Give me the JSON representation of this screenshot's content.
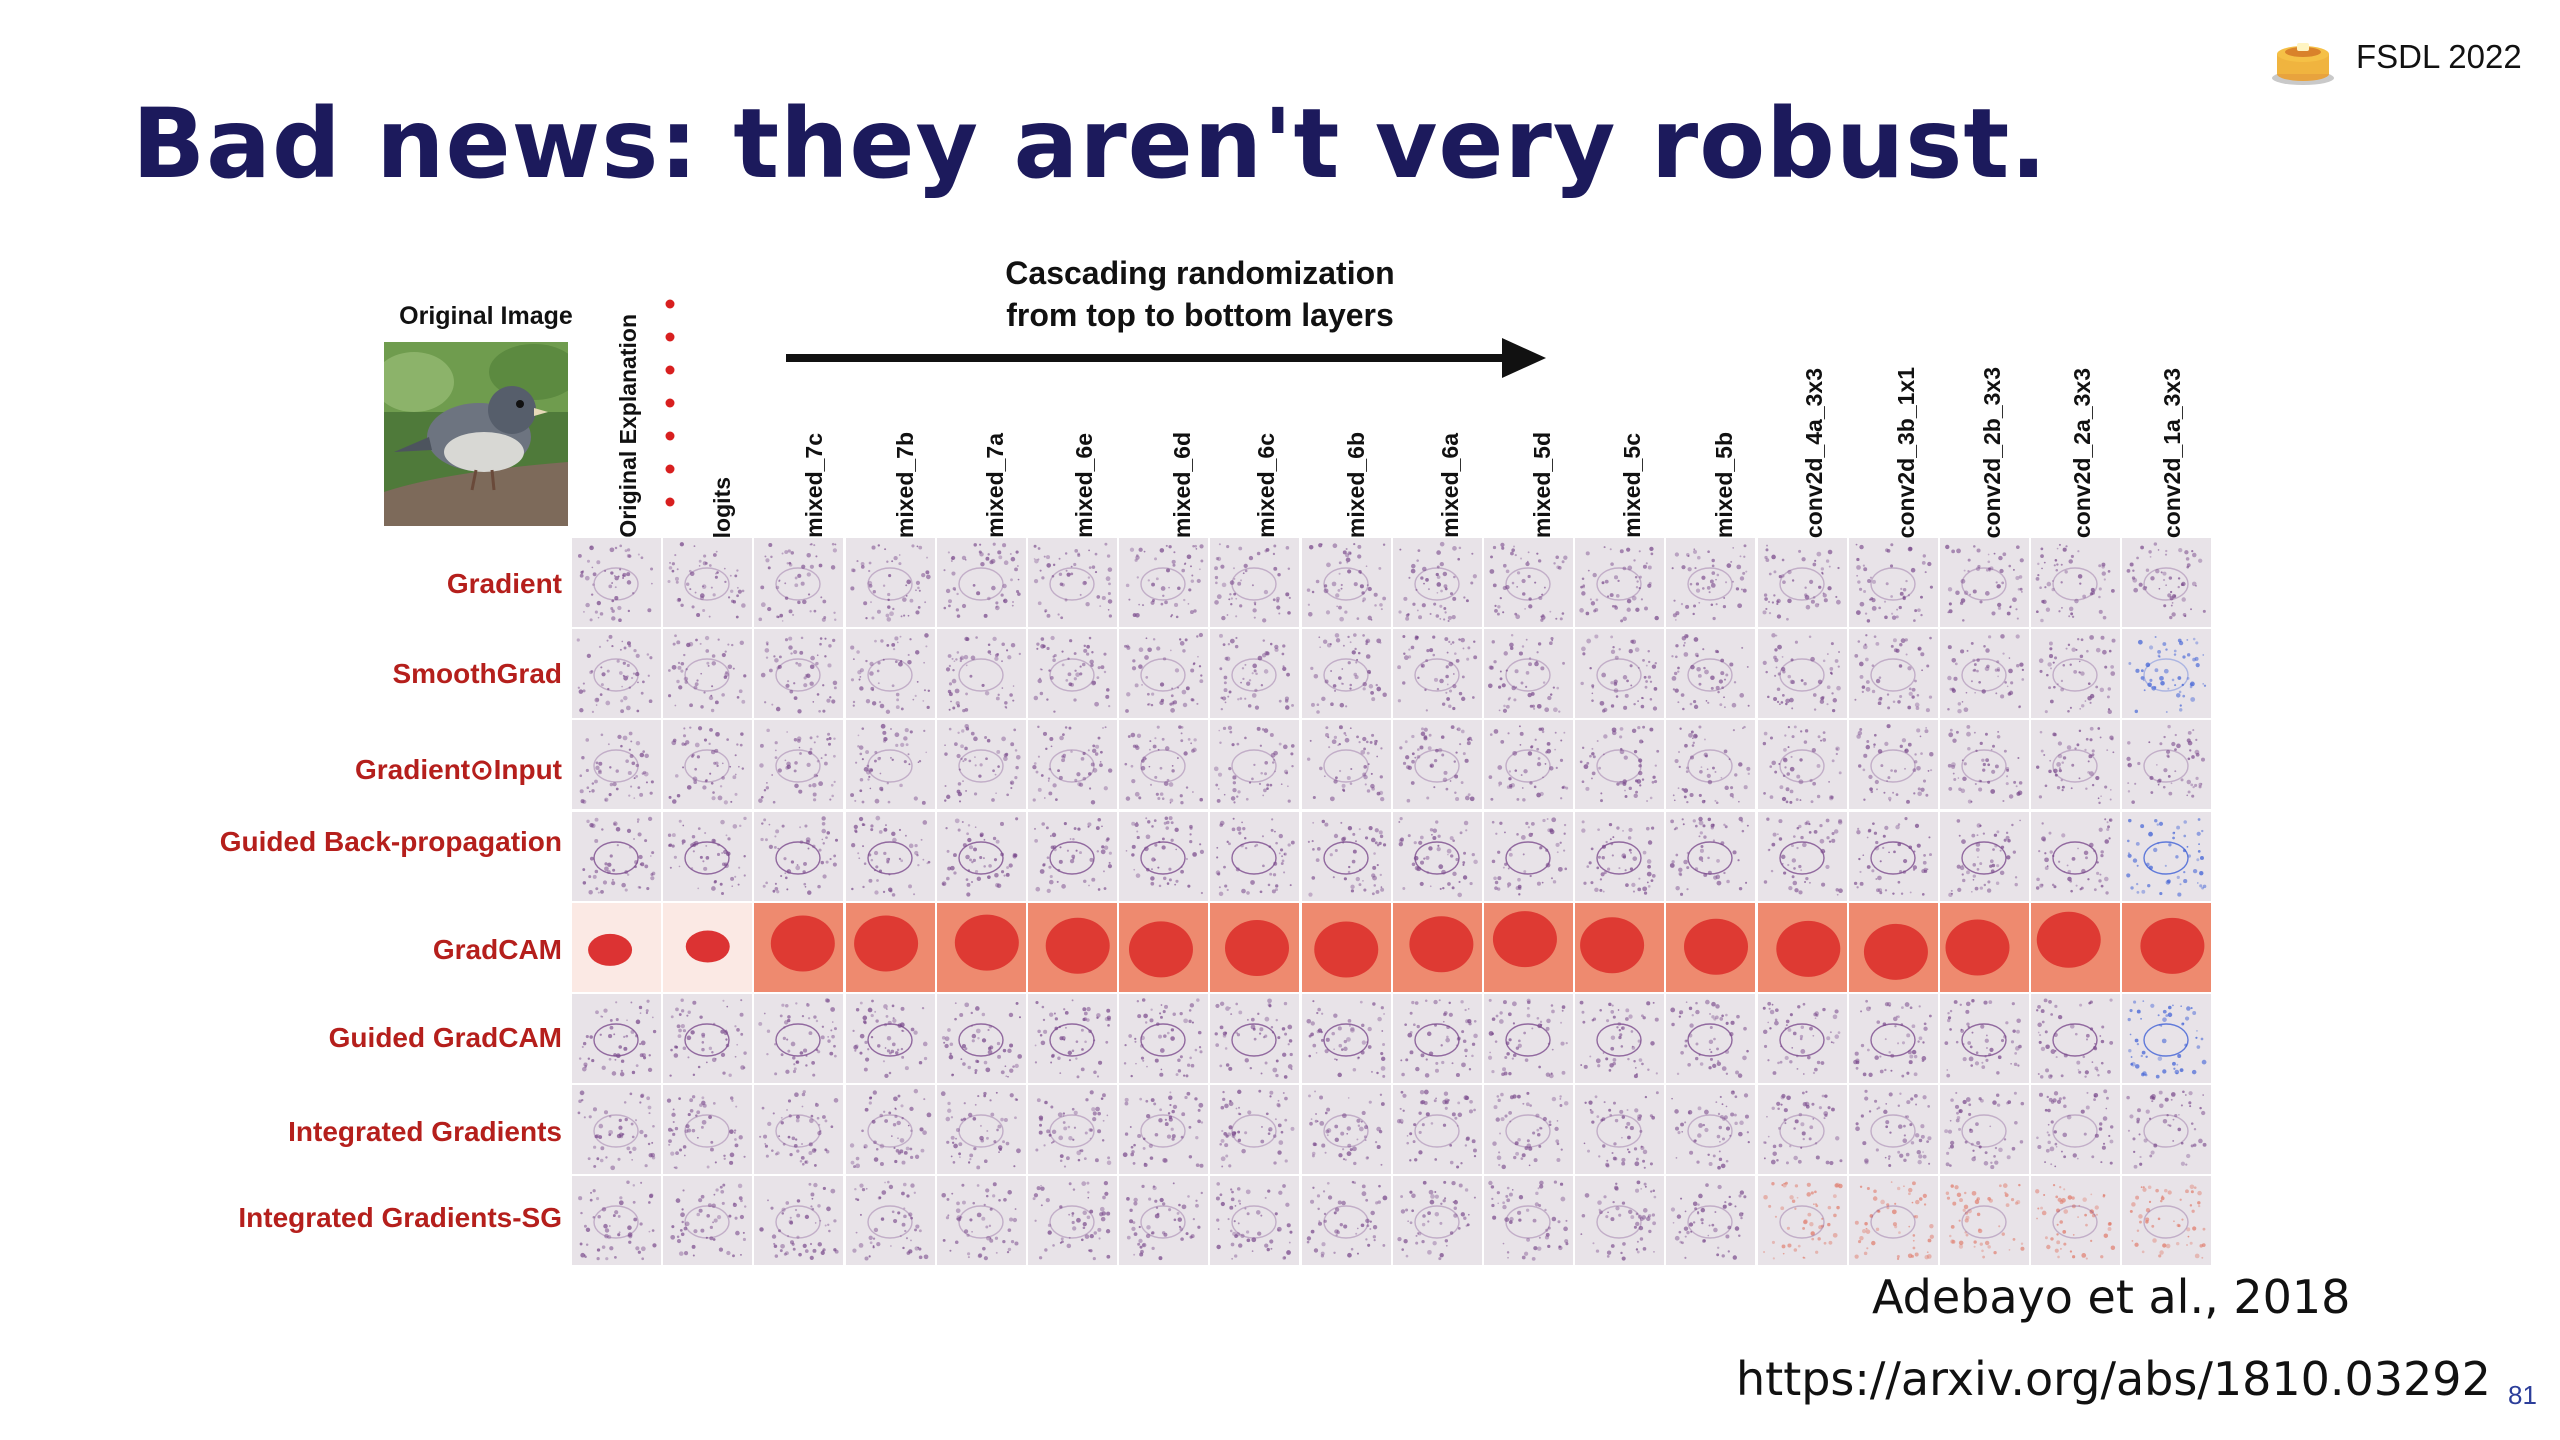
{
  "header": {
    "brand": "FSDL 2022",
    "logo_icon": "pancake-stack-icon"
  },
  "slide": {
    "title": "Bad news: they aren't very robust.",
    "page_number": "81"
  },
  "figure": {
    "original_image_label": "Original Image",
    "arrow_caption_line1": "Cascading randomization",
    "arrow_caption_line2": "from top to bottom layers",
    "columns": [
      "Original Explanation",
      "logits",
      "mixed_7c",
      "mixed_7b",
      "mixed_7a",
      "mixed_6e",
      "mixed_6d",
      "mixed_6c",
      "mixed_6b",
      "mixed_6a",
      "mixed_5d",
      "mixed_5c",
      "mixed_5b",
      "conv2d_4a_3x3",
      "conv2d_3b_1x1",
      "conv2d_2b_3x3",
      "conv2d_2a_3x3",
      "conv2d_1a_3x3"
    ],
    "rows": [
      "Gradient",
      "SmoothGrad",
      "Gradient⊙Input",
      "Guided Back-propagation",
      "GradCAM",
      "Guided GradCAM",
      "Integrated Gradients",
      "Integrated Gradients-SG"
    ],
    "colors": {
      "row_label": "#b51f1c",
      "heat_red": "#d81f1f",
      "saliency_purple": "#7a4a8c",
      "saliency_blue": "#3d5fd6",
      "title": "#1c1a5c"
    }
  },
  "citation": {
    "authors": "Adebayo et al., 2018",
    "url": "https://arxiv.org/abs/1810.03292"
  }
}
